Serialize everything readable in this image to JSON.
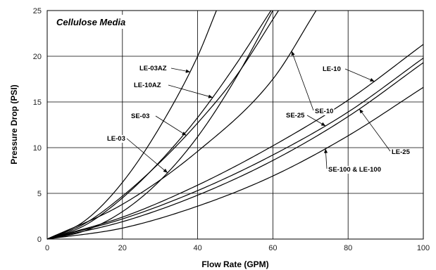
{
  "chart_data": {
    "type": "line",
    "title": "",
    "annotation_title": "Cellulose Media",
    "xlabel": "Flow Rate (GPM)",
    "ylabel": "Pressure Drop (PSI)",
    "xlim": [
      0,
      100
    ],
    "ylim": [
      0,
      25
    ],
    "xticks": [
      0,
      20,
      40,
      60,
      80,
      100
    ],
    "yticks": [
      0,
      5,
      10,
      15,
      20,
      25
    ],
    "grid": true,
    "legend": "none",
    "series": [
      {
        "name": "LE-03AZ",
        "x": [
          0,
          10,
          20,
          30,
          40,
          45
        ],
        "y": [
          0,
          2.0,
          6.2,
          12.3,
          20.0,
          25.0
        ]
      },
      {
        "name": "LE-10AZ",
        "x": [
          0,
          10,
          20,
          30,
          40,
          50,
          59.5
        ],
        "y": [
          0,
          1.5,
          4.5,
          8.5,
          13.3,
          19.0,
          25.0
        ]
      },
      {
        "name": "SE-03",
        "x": [
          0,
          10,
          20,
          30,
          40,
          50,
          61.5
        ],
        "y": [
          0,
          1.7,
          4.7,
          8.4,
          12.7,
          17.7,
          25.0
        ]
      },
      {
        "name": "LE-03",
        "x": [
          0,
          10,
          20,
          30,
          40,
          50,
          60
        ],
        "y": [
          0,
          0.9,
          3.0,
          6.4,
          11.2,
          17.5,
          25.0
        ]
      },
      {
        "name": "SE-10",
        "x": [
          0,
          20,
          40,
          60,
          71.5
        ],
        "y": [
          0,
          3.8,
          9.6,
          17.5,
          25.0
        ]
      },
      {
        "name": "LE-10",
        "x": [
          0,
          20,
          40,
          60,
          80,
          100
        ],
        "y": [
          0,
          2.4,
          5.9,
          10.2,
          15.2,
          21.3
        ]
      },
      {
        "name": "SE-25",
        "x": [
          0,
          20,
          40,
          60,
          80,
          100
        ],
        "y": [
          0,
          2.2,
          5.3,
          9.2,
          13.9,
          19.8
        ]
      },
      {
        "name": "LE-25",
        "x": [
          0,
          20,
          40,
          60,
          80,
          100
        ],
        "y": [
          0,
          1.9,
          4.8,
          8.6,
          13.4,
          19.3
        ]
      },
      {
        "name": "SE-100 & LE-100",
        "x": [
          0,
          20,
          40,
          60,
          80,
          100
        ],
        "y": [
          0,
          1.2,
          3.6,
          6.9,
          11.3,
          16.6
        ]
      }
    ]
  }
}
